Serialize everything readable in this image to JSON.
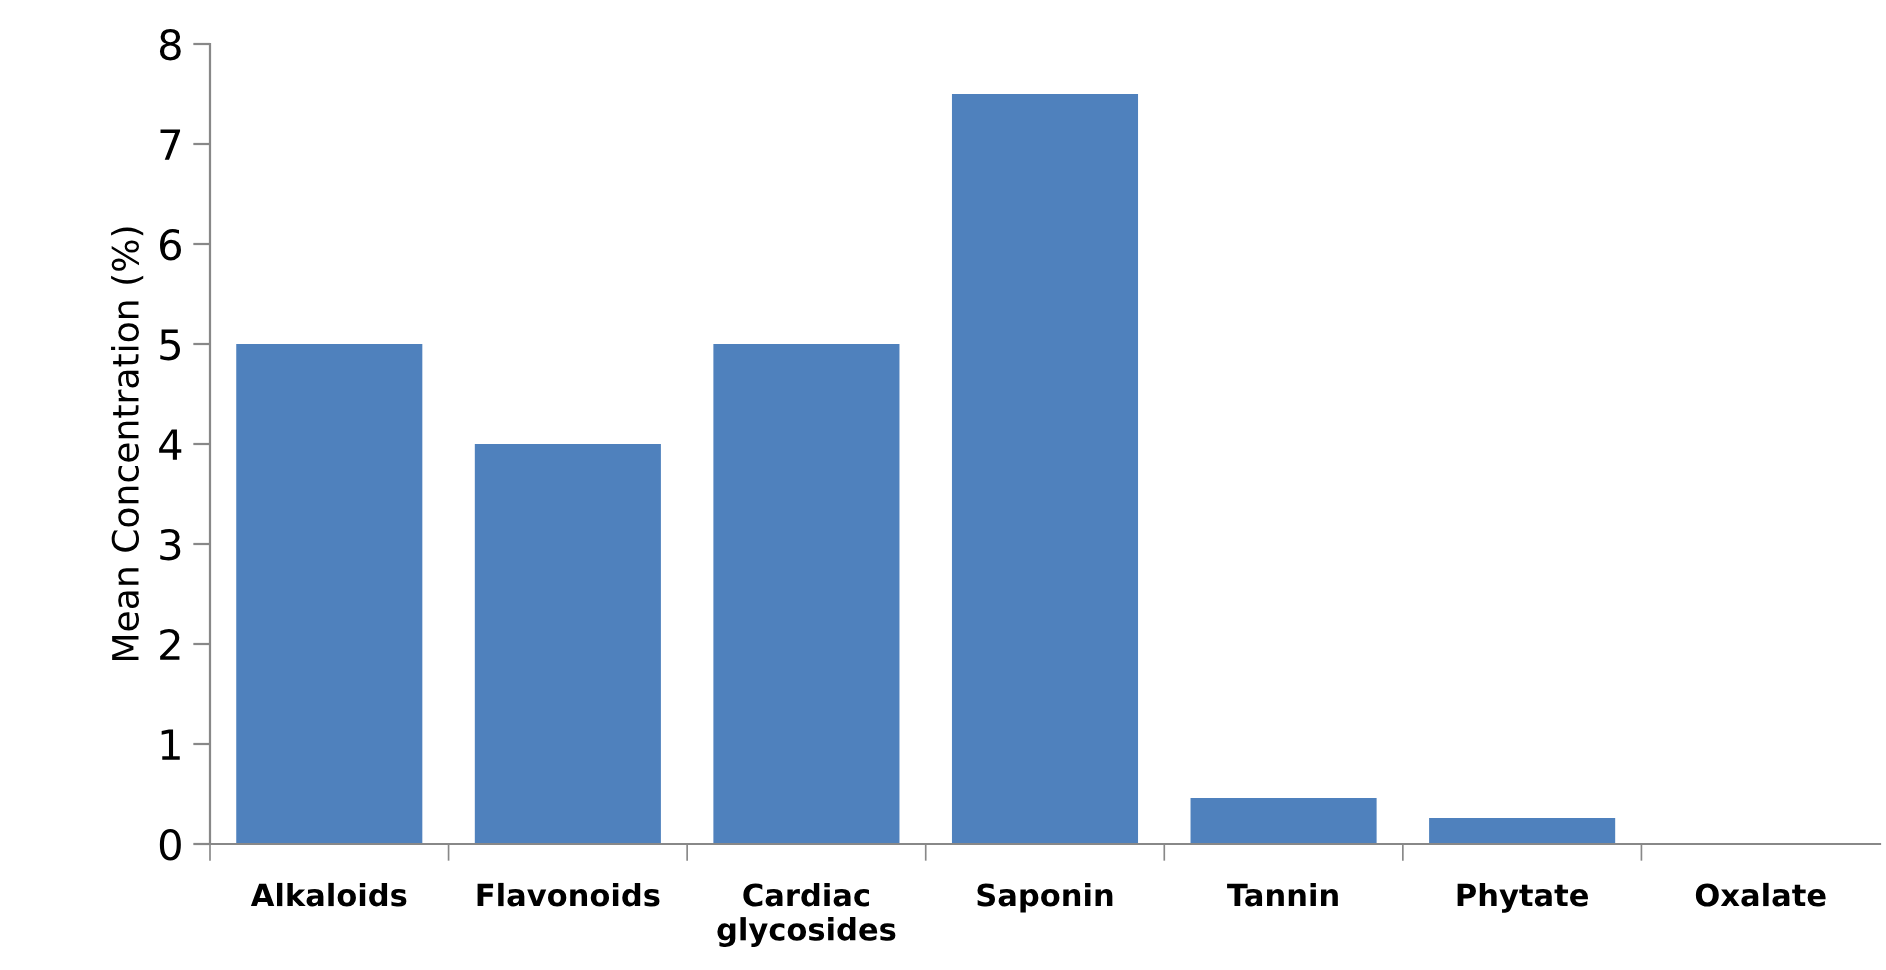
{
  "chart_data": {
    "type": "bar",
    "ylabel": "Mean Concentration (%)",
    "categories": [
      "Alkaloids",
      "Flavonoids",
      "Cardiac\nglycosides",
      "Saponin",
      "Tannin",
      "Phytate",
      "Oxalate"
    ],
    "values": [
      5,
      4,
      5,
      7.5,
      0.46,
      0.26,
      0
    ],
    "color": "#4f81bd",
    "ylim": [
      0,
      8
    ],
    "yticks": [
      0,
      1,
      2,
      3,
      4,
      5,
      6,
      7,
      8
    ],
    "grid": false,
    "legend": false
  }
}
